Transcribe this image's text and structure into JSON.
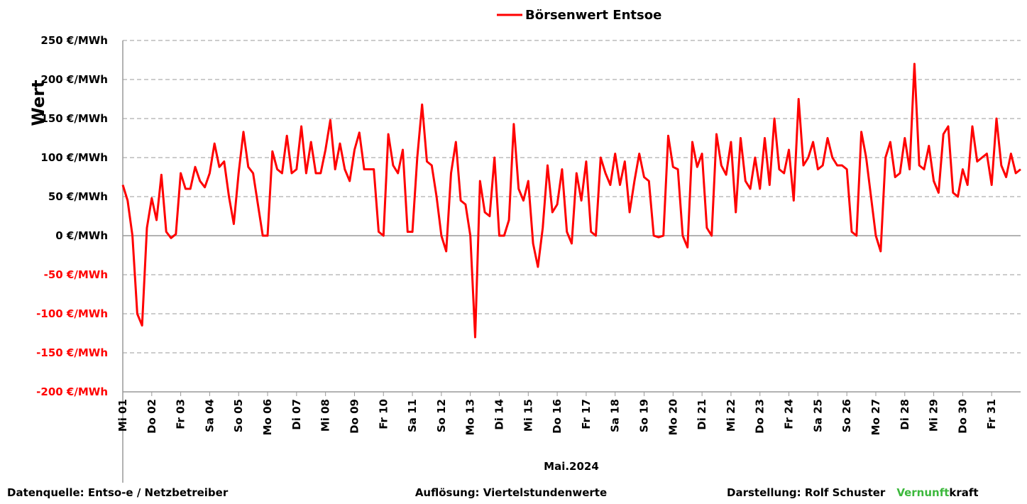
{
  "chart_data": {
    "type": "line",
    "y_label": "Wert",
    "x_label": "Mai.2024",
    "x": [
      0,
      4,
      8,
      12,
      16,
      20,
      24,
      28,
      32,
      36,
      40,
      44,
      48,
      52,
      56,
      60,
      64,
      68,
      72,
      76,
      80,
      84,
      88,
      92,
      96,
      100,
      104,
      108,
      112,
      116,
      120,
      124,
      128,
      132,
      136,
      140,
      144,
      148,
      152,
      156,
      160,
      164,
      168,
      172,
      176,
      180,
      184,
      188,
      192,
      196,
      200,
      204,
      208,
      212,
      216,
      220,
      224,
      228,
      232,
      236,
      240,
      244,
      248,
      252,
      256,
      260,
      264,
      268,
      272,
      276,
      280,
      284,
      288,
      292,
      296,
      300,
      304,
      308,
      312,
      316,
      320,
      324,
      328,
      332,
      336,
      340,
      344,
      348,
      352,
      356,
      360,
      364,
      368,
      372,
      376,
      380,
      384,
      388,
      392,
      396,
      400,
      404,
      408,
      412,
      416,
      420,
      424,
      428,
      432,
      436,
      440,
      444,
      448,
      452,
      456,
      460,
      464,
      468,
      472,
      476,
      480,
      484,
      488,
      492,
      496,
      500,
      504,
      508,
      512,
      516,
      520,
      524,
      528,
      532,
      536,
      540,
      544,
      548,
      552,
      556,
      560,
      564,
      568,
      572,
      576,
      580,
      584,
      588,
      592,
      596,
      600,
      604,
      608,
      612,
      616,
      620,
      624,
      628,
      632,
      636,
      640,
      644,
      648,
      652,
      656,
      660,
      664,
      668,
      672,
      676,
      680,
      684,
      688,
      692,
      696,
      700,
      704,
      708,
      712,
      716,
      720,
      724,
      728,
      732,
      736,
      740,
      744
    ],
    "series": [
      {
        "name": "Börsenwert Entsoe",
        "color": "#ff0000",
        "values": [
          65,
          45,
          0,
          -100,
          -115,
          10,
          48,
          20,
          78,
          5,
          -3,
          2,
          80,
          60,
          60,
          88,
          70,
          62,
          80,
          118,
          88,
          95,
          50,
          15,
          80,
          133,
          88,
          80,
          40,
          0,
          0,
          108,
          85,
          80,
          128,
          80,
          85,
          140,
          80,
          120,
          80,
          80,
          110,
          148,
          85,
          118,
          85,
          70,
          110,
          132,
          85,
          85,
          85,
          5,
          0,
          130,
          90,
          80,
          110,
          5,
          5,
          100,
          168,
          95,
          90,
          50,
          0,
          -20,
          80,
          120,
          45,
          40,
          0,
          -130,
          70,
          30,
          25,
          100,
          0,
          0,
          20,
          143,
          60,
          45,
          70,
          -10,
          -40,
          10,
          90,
          30,
          40,
          85,
          5,
          -10,
          80,
          45,
          95,
          5,
          0,
          100,
          80,
          65,
          105,
          65,
          95,
          30,
          70,
          105,
          75,
          70,
          0,
          -2,
          0,
          128,
          88,
          85,
          0,
          -15,
          120,
          88,
          105,
          10,
          0,
          130,
          90,
          78,
          120,
          30,
          125,
          70,
          60,
          100,
          60,
          125,
          65,
          150,
          85,
          80,
          110,
          45,
          175,
          90,
          100,
          120,
          85,
          90,
          125,
          100,
          90,
          90,
          85,
          5,
          0,
          133,
          100,
          50,
          0,
          -20,
          100,
          120,
          75,
          80,
          125,
          85,
          220,
          90,
          85,
          115,
          70,
          55,
          130,
          140,
          55,
          50,
          85,
          65,
          140,
          95,
          100,
          105,
          65,
          150,
          90,
          75,
          105,
          80,
          85
        ]
      }
    ],
    "xlim": [
      0,
      744
    ],
    "xticks": [
      {
        "value": 0,
        "label": "Mi 01"
      },
      {
        "value": 24,
        "label": "Do 02"
      },
      {
        "value": 48,
        "label": "Fr 03"
      },
      {
        "value": 72,
        "label": "Sa 04"
      },
      {
        "value": 96,
        "label": "So 05"
      },
      {
        "value": 120,
        "label": "Mo 06"
      },
      {
        "value": 144,
        "label": "Di 07"
      },
      {
        "value": 168,
        "label": "Mi 08"
      },
      {
        "value": 192,
        "label": "Do 09"
      },
      {
        "value": 216,
        "label": "Fr 10"
      },
      {
        "value": 240,
        "label": "Sa 11"
      },
      {
        "value": 264,
        "label": "So 12"
      },
      {
        "value": 288,
        "label": "Mo 13"
      },
      {
        "value": 312,
        "label": "Di 14"
      },
      {
        "value": 336,
        "label": "Mi 15"
      },
      {
        "value": 360,
        "label": "Do 16"
      },
      {
        "value": 384,
        "label": "Fr 17"
      },
      {
        "value": 408,
        "label": "Sa 18"
      },
      {
        "value": 432,
        "label": "So 19"
      },
      {
        "value": 456,
        "label": "Mo 20"
      },
      {
        "value": 480,
        "label": "Di 21"
      },
      {
        "value": 504,
        "label": "Mi 22"
      },
      {
        "value": 528,
        "label": "Do 23"
      },
      {
        "value": 552,
        "label": "Fr 24"
      },
      {
        "value": 576,
        "label": "Sa 25"
      },
      {
        "value": 600,
        "label": "So 26"
      },
      {
        "value": 624,
        "label": "Mo 27"
      },
      {
        "value": 648,
        "label": "Di 28"
      },
      {
        "value": 672,
        "label": "Mi 29"
      },
      {
        "value": 696,
        "label": "Do 30"
      },
      {
        "value": 720,
        "label": "Fr 31"
      }
    ],
    "ylim": [
      -200,
      250
    ],
    "yticks": [
      {
        "value": 250,
        "label": "250 €/MWh"
      },
      {
        "value": 200,
        "label": "200 €/MWh"
      },
      {
        "value": 150,
        "label": "150 €/MWh"
      },
      {
        "value": 100,
        "label": "100 €/MWh"
      },
      {
        "value": 50,
        "label": "50 €/MWh"
      },
      {
        "value": 0,
        "label": "0 €/MWh"
      },
      {
        "value": -50,
        "label": "-50 €/MWh"
      },
      {
        "value": -100,
        "label": "-100 €/MWh"
      },
      {
        "value": -150,
        "label": "-150 €/MWh"
      },
      {
        "value": -200,
        "label": "-200 €/MWh"
      }
    ],
    "negative_tick_color": "#ff0000",
    "grid": true,
    "legend": "top"
  },
  "footer": {
    "source": "Datenquelle:  Entso-e  / Netzbetreiber",
    "resolution": "Auflösung: Viertelstundenwerte",
    "author": "Darstellung:  Rolf Schuster",
    "brand_green": "Vernunft",
    "brand_rest": "kraft"
  }
}
